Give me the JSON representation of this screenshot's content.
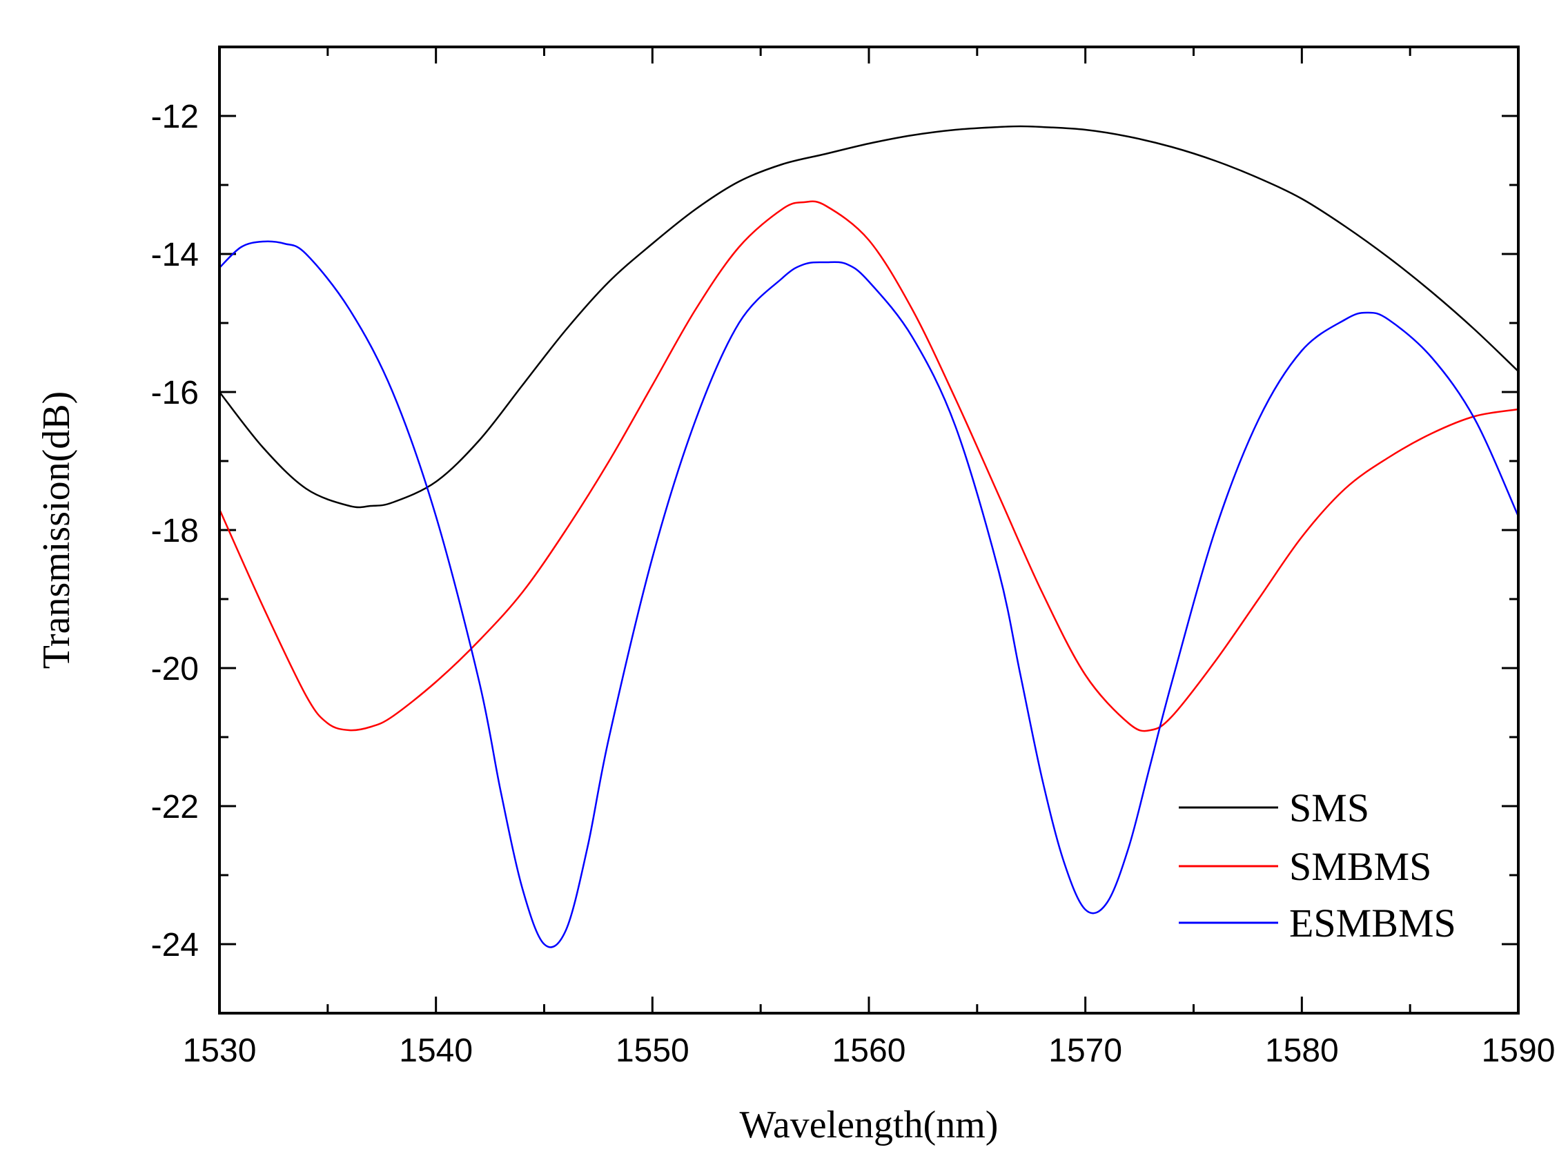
{
  "chart_data": {
    "type": "line",
    "title": "",
    "xlabel": "Wavelength(nm)",
    "ylabel": "Transmission(dB)",
    "xlim": [
      1530,
      1590
    ],
    "ylim": [
      -25,
      -11
    ],
    "xticks": [
      1530,
      1540,
      1550,
      1560,
      1570,
      1580,
      1590
    ],
    "yticks": [
      -12,
      -14,
      -16,
      -18,
      -20,
      -22,
      -24
    ],
    "grid": false,
    "legend": "bottom-right",
    "series": [
      {
        "name": "SMS",
        "color": "#000000",
        "x": [
          1530,
          1532,
          1534,
          1536,
          1537,
          1538,
          1540,
          1542,
          1544,
          1546,
          1548,
          1550,
          1552,
          1554,
          1556,
          1558,
          1560,
          1562,
          1564,
          1566,
          1567,
          1568,
          1570,
          1572,
          1574,
          1576,
          1578,
          1580,
          1582,
          1584,
          1586,
          1588,
          1590
        ],
        "y": [
          -16.0,
          -16.8,
          -17.4,
          -17.65,
          -17.65,
          -17.6,
          -17.3,
          -16.7,
          -15.9,
          -15.1,
          -14.4,
          -13.85,
          -13.35,
          -12.95,
          -12.7,
          -12.55,
          -12.4,
          -12.28,
          -12.2,
          -12.16,
          -12.15,
          -12.16,
          -12.2,
          -12.3,
          -12.45,
          -12.65,
          -12.9,
          -13.2,
          -13.6,
          -14.05,
          -14.55,
          -15.1,
          -15.7
        ]
      },
      {
        "name": "SMBMS",
        "color": "#ff0000",
        "x": [
          1530,
          1532,
          1534,
          1535,
          1536,
          1537,
          1538,
          1540,
          1542,
          1544,
          1546,
          1548,
          1550,
          1552,
          1554,
          1556,
          1557,
          1558,
          1560,
          1562,
          1564,
          1566,
          1568,
          1570,
          1572,
          1573,
          1574,
          1576,
          1578,
          1580,
          1582,
          1584,
          1586,
          1588,
          1590
        ],
        "y": [
          -17.7,
          -19.1,
          -20.4,
          -20.8,
          -20.9,
          -20.85,
          -20.7,
          -20.2,
          -19.6,
          -18.9,
          -18.0,
          -17.0,
          -15.9,
          -14.8,
          -13.9,
          -13.35,
          -13.25,
          -13.3,
          -13.8,
          -14.8,
          -16.1,
          -17.5,
          -18.9,
          -20.1,
          -20.8,
          -20.9,
          -20.7,
          -19.9,
          -19.0,
          -18.1,
          -17.4,
          -16.95,
          -16.6,
          -16.35,
          -16.25
        ]
      },
      {
        "name": "ESMBMS",
        "color": "#0000ff",
        "x": [
          1530,
          1531,
          1532,
          1533,
          1534,
          1536,
          1538,
          1540,
          1542,
          1543,
          1544,
          1545,
          1546,
          1547,
          1548,
          1550,
          1552,
          1554,
          1556,
          1557,
          1558,
          1559,
          1560,
          1562,
          1564,
          1566,
          1567,
          1568,
          1569,
          1570,
          1571,
          1572,
          1573,
          1574,
          1576,
          1578,
          1580,
          1582,
          1583,
          1584,
          1586,
          1588,
          1590
        ],
        "y": [
          -14.2,
          -13.9,
          -13.82,
          -13.85,
          -14.0,
          -14.8,
          -16.0,
          -17.8,
          -20.2,
          -21.8,
          -23.2,
          -24.0,
          -23.8,
          -22.6,
          -21.0,
          -18.4,
          -16.4,
          -15.0,
          -14.35,
          -14.15,
          -14.12,
          -14.15,
          -14.4,
          -15.2,
          -16.5,
          -18.6,
          -20.1,
          -21.6,
          -22.8,
          -23.5,
          -23.4,
          -22.6,
          -21.4,
          -20.2,
          -18.0,
          -16.4,
          -15.4,
          -14.95,
          -14.85,
          -14.95,
          -15.5,
          -16.4,
          -17.8
        ]
      }
    ]
  }
}
